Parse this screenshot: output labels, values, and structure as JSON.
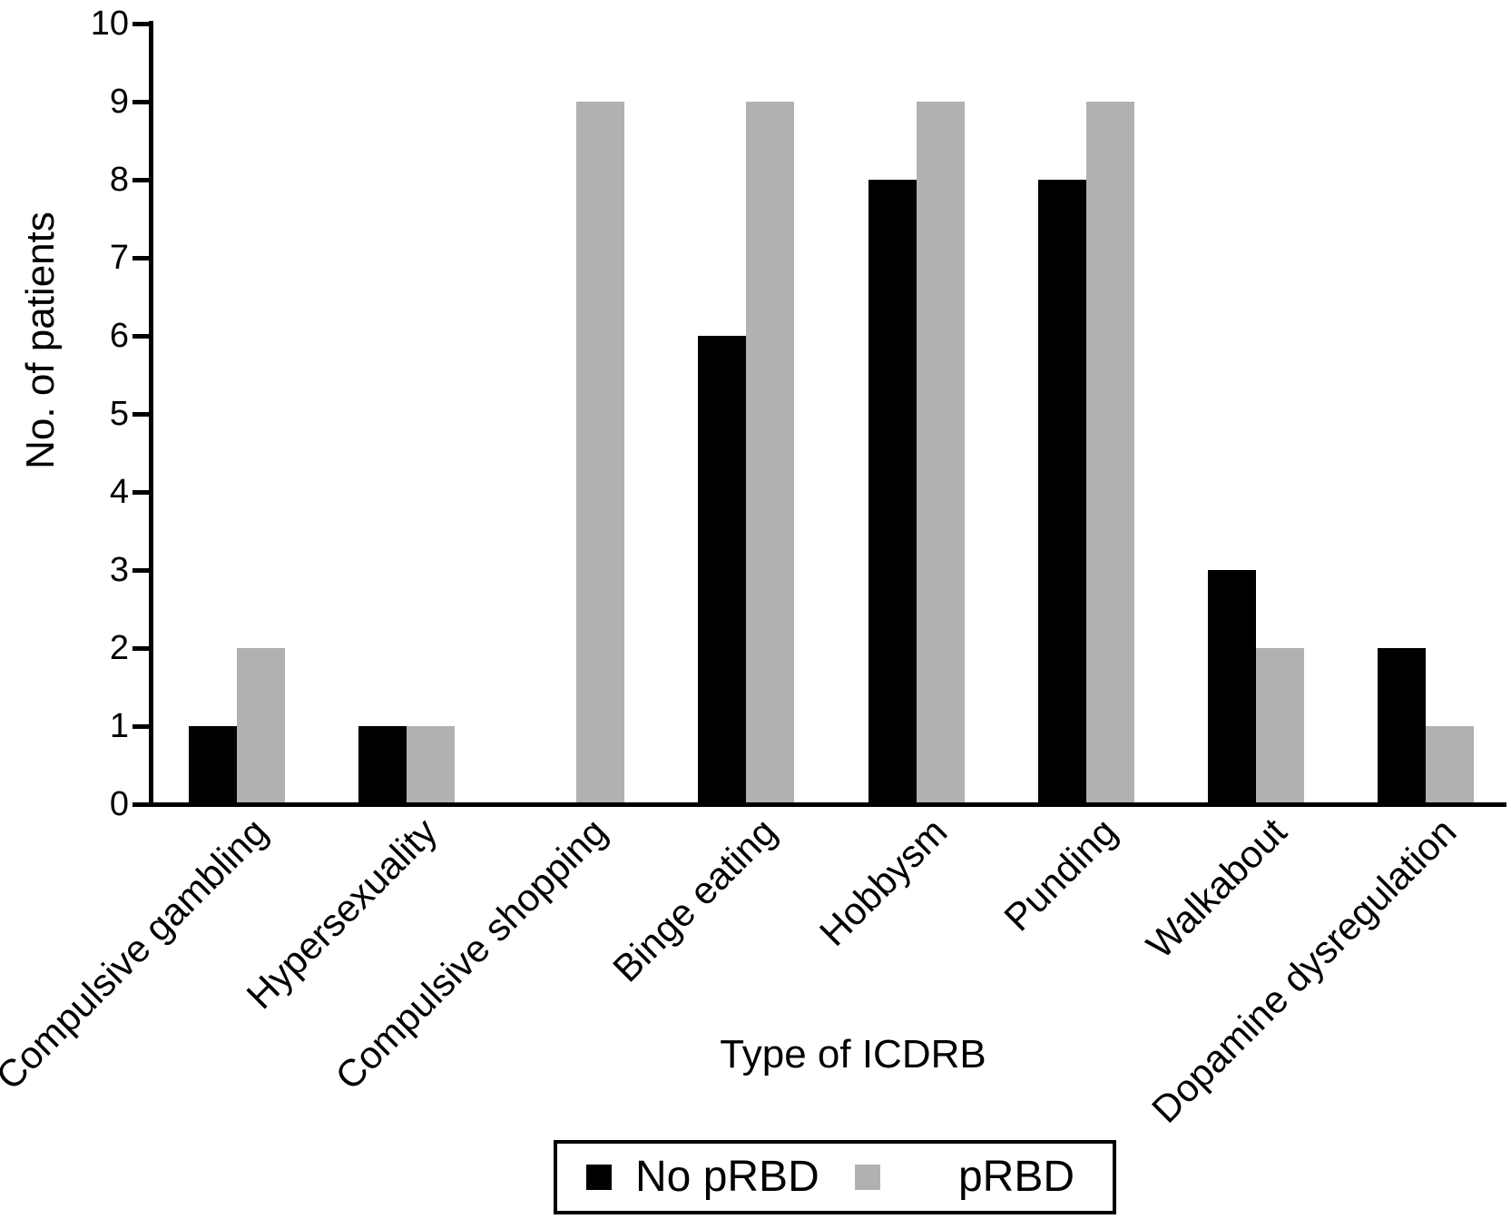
{
  "chart_data": {
    "type": "bar",
    "title": "",
    "xlabel": "Type of ICDRB",
    "ylabel": "No. of patients",
    "ylim": [
      0,
      10
    ],
    "yticks": [
      0,
      1,
      2,
      3,
      4,
      5,
      6,
      7,
      8,
      9,
      10
    ],
    "grid": false,
    "legend_position": "bottom",
    "background_color": "#ffffff",
    "axis_color": "#000000",
    "categories": [
      "Compulsive gambling",
      "Hypersexuality",
      "Compulsive shopping",
      "Binge eating",
      "Hobbysm",
      "Punding",
      "Walkabout",
      "Dopamine dysregulation"
    ],
    "series": [
      {
        "name": "No pRBD",
        "color": "#000000",
        "values": [
          1,
          1,
          0,
          6,
          8,
          8,
          3,
          2
        ]
      },
      {
        "name": "pRBD",
        "color": "#b1b1b1",
        "values": [
          2,
          1,
          9,
          9,
          9,
          9,
          2,
          1
        ]
      }
    ]
  }
}
